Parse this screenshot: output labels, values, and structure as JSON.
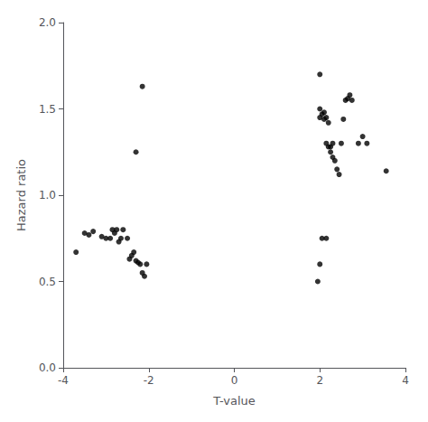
{
  "chart_data": {
    "type": "scatter",
    "xlabel": "T-value",
    "ylabel": "Hazard ratio",
    "x": [
      -3.7,
      -3.5,
      -3.4,
      -3.3,
      -3.1,
      -3.0,
      -2.9,
      -2.85,
      -2.8,
      -2.75,
      -2.7,
      -2.65,
      -2.6,
      -2.5,
      -2.45,
      -2.4,
      -2.35,
      -2.3,
      -2.25,
      -2.2,
      -2.15,
      -2.1,
      -2.05,
      -2.3,
      -2.15,
      1.95,
      2.0,
      2.05,
      2.15,
      2.0,
      2.05,
      2.1,
      2.0,
      2.1,
      2.15,
      2.2,
      2.15,
      2.2,
      2.25,
      2.3,
      2.25,
      2.3,
      2.35,
      2.4,
      2.45,
      2.5,
      2.55,
      2.6,
      2.65,
      2.7,
      2.75,
      2.0,
      2.9,
      3.0,
      3.55,
      3.1
    ],
    "values": [
      0.67,
      0.78,
      0.77,
      0.79,
      0.76,
      0.75,
      0.75,
      0.8,
      0.78,
      0.8,
      0.73,
      0.75,
      0.8,
      0.75,
      0.63,
      0.65,
      0.67,
      0.62,
      0.61,
      0.6,
      0.55,
      0.53,
      0.6,
      1.25,
      1.63,
      0.5,
      0.6,
      0.75,
      0.75,
      1.45,
      1.47,
      1.44,
      1.5,
      1.48,
      1.45,
      1.42,
      1.3,
      1.28,
      1.28,
      1.3,
      1.25,
      1.22,
      1.2,
      1.15,
      1.12,
      1.3,
      1.44,
      1.55,
      1.56,
      1.58,
      1.55,
      1.7,
      1.3,
      1.34,
      1.14,
      1.3
    ],
    "xlim": [
      -4,
      4
    ],
    "xticks": [
      -4,
      -2,
      0,
      2,
      4
    ],
    "ylim": [
      0.0,
      2.0
    ],
    "yticks": [
      {
        "value": 0.0,
        "label": "0.0"
      },
      {
        "value": 0.5,
        "label": "0.5"
      },
      {
        "value": 1.0,
        "label": "1.0"
      },
      {
        "value": 1.5,
        "label": "1.5"
      },
      {
        "value": 2.0,
        "label": "2.0"
      }
    ],
    "color": "#000000",
    "marker": "circle",
    "grid": false
  }
}
